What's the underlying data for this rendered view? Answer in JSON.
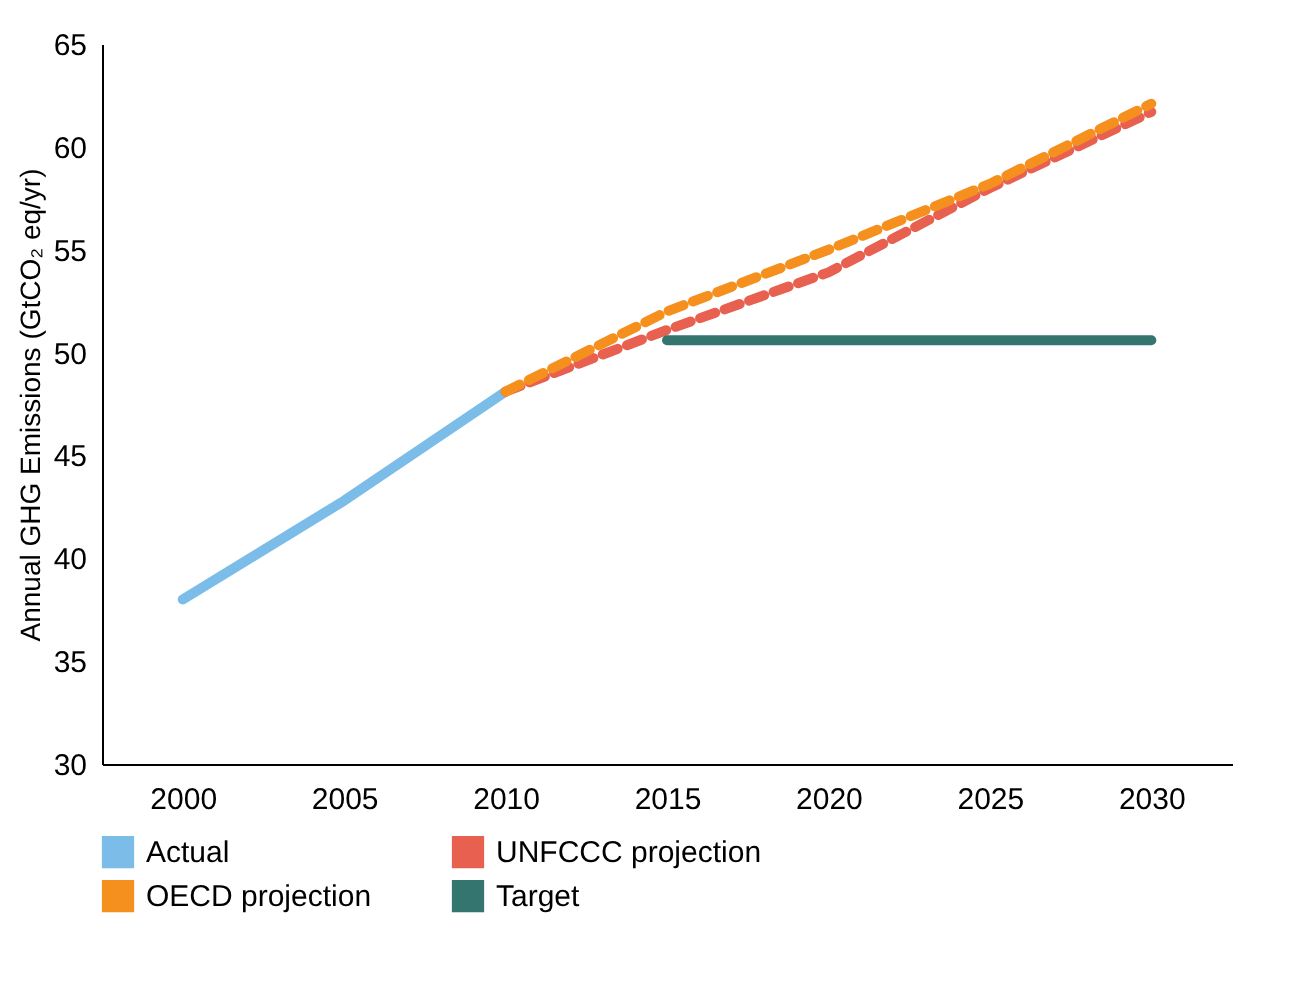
{
  "chart_data": {
    "type": "line",
    "ylabel": "Annual GHG Emissions (GtCO₂ eq/yr)",
    "categories": [
      "2000",
      "2005",
      "2010",
      "2015",
      "2020",
      "2025",
      "2030"
    ],
    "series": [
      {
        "name": "Actual",
        "color": "#7bbde8",
        "line_style": "solid",
        "values": [
          38,
          42.8,
          48.1,
          null,
          null,
          null,
          null
        ]
      },
      {
        "name": "UNFCCC projection",
        "color": "#e8604f",
        "line_style": "dashed",
        "values": [
          null,
          null,
          48.1,
          51.1,
          53.9,
          58,
          61.7
        ]
      },
      {
        "name": "OECD projection",
        "color": "#f5901e",
        "line_style": "dashed",
        "values": [
          null,
          null,
          48.1,
          52,
          55,
          58.2,
          62.1
        ]
      },
      {
        "name": "Target",
        "color": "#357570",
        "line_style": "solid",
        "values": [
          null,
          null,
          null,
          50.6,
          50.6,
          50.6,
          50.6
        ]
      }
    ],
    "ylim": [
      30,
      65
    ],
    "yticks": [
      30,
      35,
      40,
      45,
      50,
      55,
      60,
      65
    ],
    "grid": false,
    "legend": "bottom",
    "marker": "none"
  }
}
